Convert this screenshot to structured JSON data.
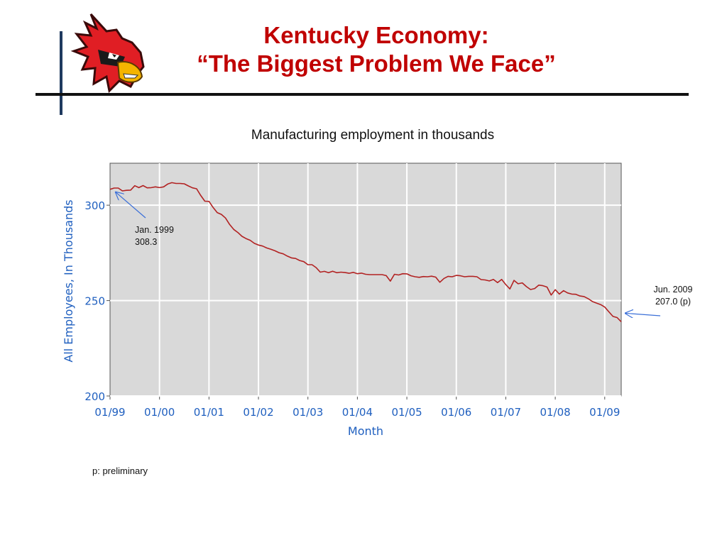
{
  "slide": {
    "title_line1": "Kentucky Economy:",
    "title_line2": "“The Biggest Problem We Face”",
    "subtitle": "Manufacturing employment in thousands",
    "footnote": "p: preliminary"
  },
  "colors": {
    "title": "#c00000",
    "line": "#b22222",
    "axis_text": "#1f5fbf",
    "plot_bg": "#d9d9d9",
    "arrow": "#3a6fd8"
  },
  "chart_data": {
    "type": "line",
    "xlabel": "Month",
    "ylabel": "All Employees, In Thousands",
    "xlim": [
      0,
      124
    ],
    "ylim": [
      200,
      322
    ],
    "grid": true,
    "x_ticks": [
      {
        "x": 0,
        "label": "01/99"
      },
      {
        "x": 12,
        "label": "01/00"
      },
      {
        "x": 24,
        "label": "01/01"
      },
      {
        "x": 36,
        "label": "01/02"
      },
      {
        "x": 48,
        "label": "01/03"
      },
      {
        "x": 60,
        "label": "01/04"
      },
      {
        "x": 72,
        "label": "01/05"
      },
      {
        "x": 84,
        "label": "01/06"
      },
      {
        "x": 96,
        "label": "01/07"
      },
      {
        "x": 108,
        "label": "01/08"
      },
      {
        "x": 120,
        "label": "01/09"
      }
    ],
    "y_ticks": [
      {
        "y": 200,
        "label": "200"
      },
      {
        "y": 250,
        "label": "250"
      },
      {
        "y": 300,
        "label": "300"
      }
    ],
    "series": [
      {
        "x": [
          0,
          1,
          2,
          3,
          4,
          5,
          6,
          7,
          8,
          9,
          10,
          11,
          12,
          13,
          14,
          15,
          16,
          17,
          18,
          19,
          20,
          21,
          22,
          23,
          24,
          25,
          26,
          27,
          28,
          29,
          30,
          31,
          32,
          33,
          34,
          35,
          36,
          37,
          38,
          39,
          40,
          41,
          42,
          43,
          44,
          45,
          46,
          47,
          48,
          49,
          50,
          51,
          52,
          53,
          54,
          55,
          56,
          57,
          58,
          59,
          60,
          61,
          62,
          63,
          64,
          65,
          66,
          67,
          68,
          69,
          70,
          71,
          72,
          73,
          74,
          75,
          76,
          77,
          78,
          79,
          80,
          81,
          82,
          83,
          84,
          85,
          86,
          87,
          88,
          89,
          90,
          91,
          92,
          93,
          94,
          95,
          96,
          97,
          98,
          99,
          100,
          101,
          102,
          103,
          104,
          105,
          106,
          107,
          108,
          109,
          110,
          111,
          112,
          113,
          114,
          115,
          116,
          117,
          118,
          119,
          120,
          121,
          122,
          123,
          124
        ],
        "y": [
          308.3,
          309,
          309,
          307.5,
          307.8,
          307.9,
          310.2,
          309.2,
          310.3,
          309.1,
          309.2,
          309.6,
          309.2,
          309.6,
          311.1,
          311.8,
          311.4,
          311.4,
          311.2,
          310.1,
          309.1,
          308.6,
          305.1,
          302.1,
          302,
          298.8,
          296.1,
          295.2,
          293.3,
          289.9,
          287.3,
          285.7,
          283.7,
          282.5,
          281.6,
          280,
          279.1,
          278.6,
          277.6,
          276.9,
          276.1,
          275.1,
          274.5,
          273.3,
          272.4,
          272.1,
          271,
          270.4,
          268.8,
          268.8,
          267.3,
          264.9,
          265.3,
          264.6,
          265.4,
          264.6,
          264.9,
          264.7,
          264.3,
          264.8,
          264.1,
          264.4,
          263.8,
          263.6,
          263.6,
          263.6,
          263.6,
          263.1,
          260.2,
          263.8,
          263.4,
          264.1,
          264,
          263,
          262.5,
          262.2,
          262.6,
          262.5,
          262.8,
          262.3,
          259.6,
          261.6,
          262.7,
          262.5,
          263.2,
          263,
          262.5,
          262.7,
          262.7,
          262.5,
          261,
          260.8,
          260.3,
          261.1,
          259.4,
          261.1,
          258.4,
          256.1,
          260.6,
          258.8,
          259.3,
          257.3,
          255.8,
          256.3,
          258.1,
          257.8,
          257.1,
          252.9,
          255.7,
          253.4,
          255.2,
          254,
          253.4,
          253.3,
          252.4,
          252.1,
          251,
          249.5,
          248.7,
          247.9,
          246.6,
          244.1,
          241.7,
          241.1,
          238.9
        ]
      }
    ],
    "annotations": [
      {
        "label_line1": "Jan. 1999",
        "label_line2": "308.3"
      },
      {
        "label_line1": "Jun. 2009",
        "label_line2": "207.0 (p)"
      }
    ]
  }
}
